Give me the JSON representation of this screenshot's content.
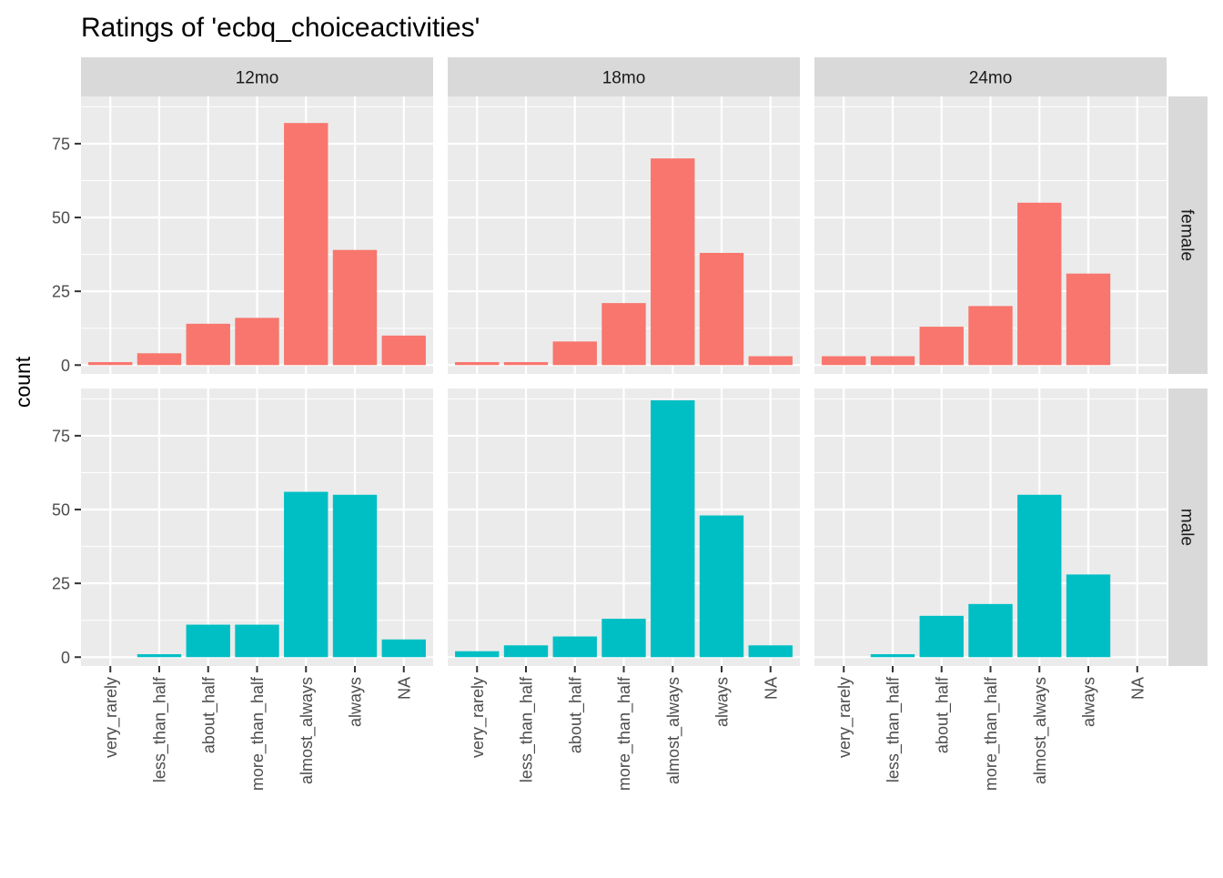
{
  "chart_data": {
    "type": "bar",
    "title": "Ratings of 'ecbq_choiceactivities'",
    "xlabel": "",
    "ylabel": "count",
    "categories": [
      "very_rarely",
      "less_than_half",
      "about_half",
      "more_than_half",
      "almost_always",
      "always",
      "NA"
    ],
    "facet_cols": [
      "12mo",
      "18mo",
      "24mo"
    ],
    "facet_rows": [
      "female",
      "male"
    ],
    "ylim": [
      -3,
      91
    ],
    "yticks": [
      0,
      25,
      50,
      75
    ],
    "grid": true,
    "legend": "none",
    "row_colors": {
      "female": "#F8766D",
      "male": "#00BFC4"
    },
    "panels": [
      {
        "col": "12mo",
        "row": "female",
        "values": [
          1,
          4,
          14,
          16,
          82,
          39,
          10
        ]
      },
      {
        "col": "18mo",
        "row": "female",
        "values": [
          1,
          1,
          8,
          21,
          70,
          38,
          3
        ]
      },
      {
        "col": "24mo",
        "row": "female",
        "values": [
          3,
          3,
          13,
          20,
          55,
          31,
          0
        ]
      },
      {
        "col": "12mo",
        "row": "male",
        "values": [
          0,
          1,
          11,
          11,
          56,
          55,
          6
        ]
      },
      {
        "col": "18mo",
        "row": "male",
        "values": [
          2,
          4,
          7,
          13,
          87,
          48,
          4
        ]
      },
      {
        "col": "24mo",
        "row": "male",
        "values": [
          0,
          1,
          14,
          18,
          55,
          28,
          0
        ]
      }
    ]
  }
}
